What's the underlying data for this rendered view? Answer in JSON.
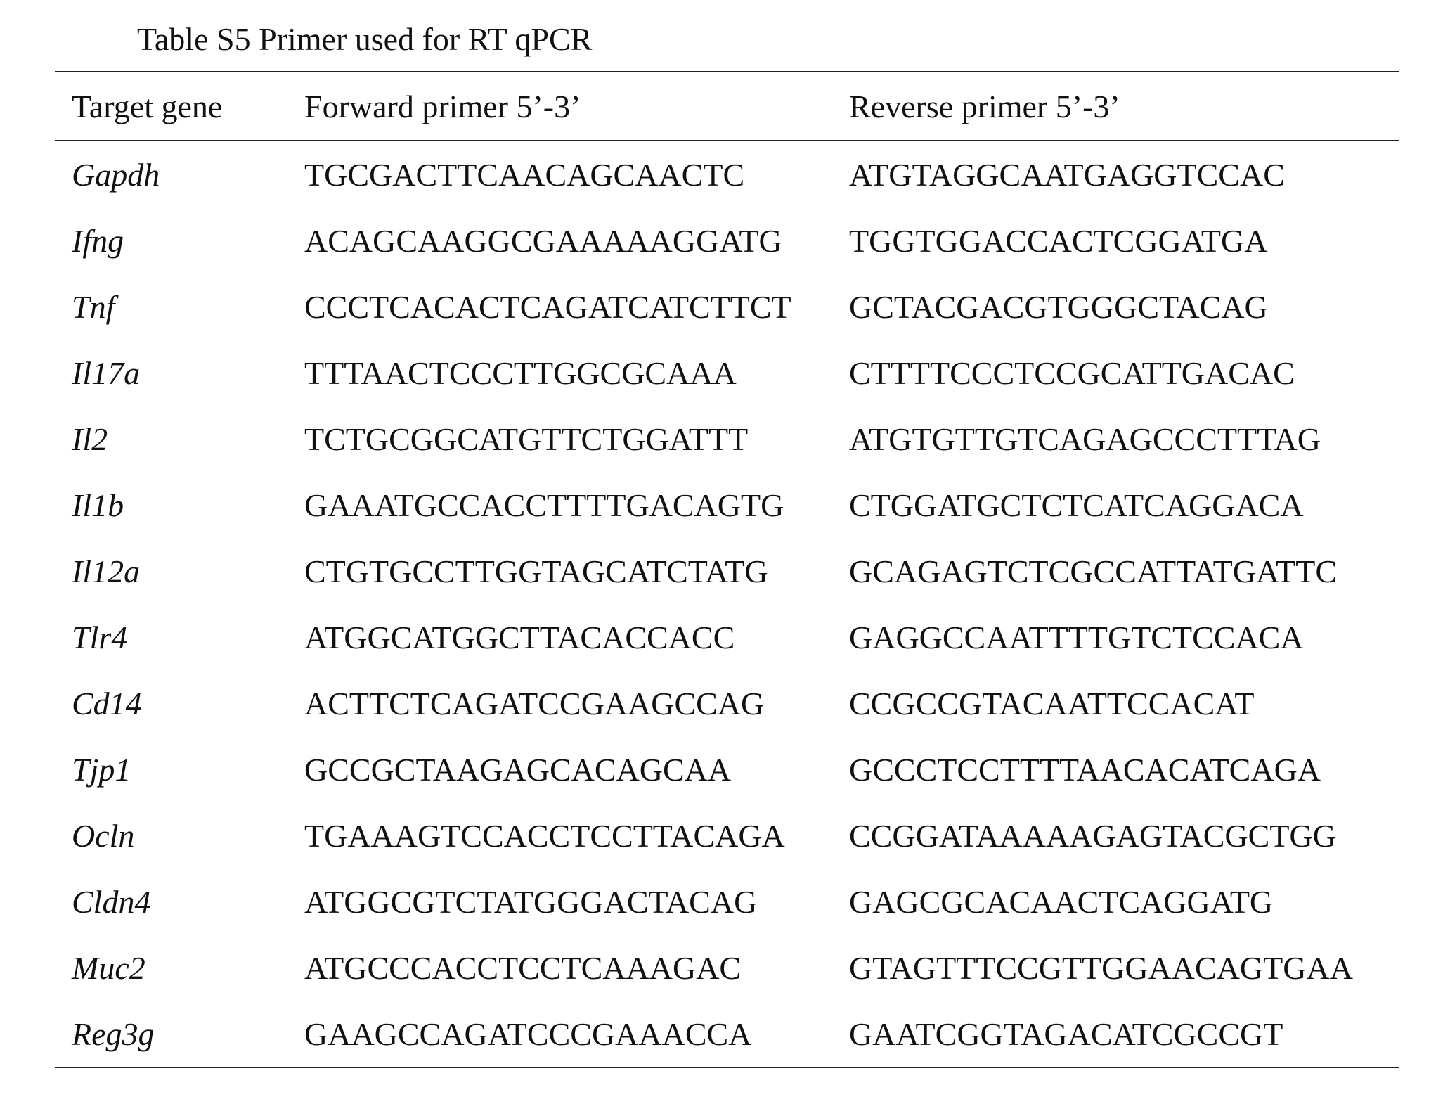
{
  "caption": "Table S5 Primer used for RT qPCR",
  "columns": [
    "Target gene",
    "Forward primer 5’-3’",
    "Reverse primer 5’-3’"
  ],
  "rows": [
    {
      "gene": "Gapdh",
      "forward": "TGCGACTTCAACAGCAACTC",
      "reverse": "ATGTAGGCAATGAGGTCCAC"
    },
    {
      "gene": "Ifng",
      "forward": "ACAGCAAGGCGAAAAAGGATG",
      "reverse": "TGGTGGACCACTCGGATGA"
    },
    {
      "gene": "Tnf",
      "forward": "CCCTCACACTCAGATCATCTTCT",
      "reverse": "GCTACGACGTGGGCTACAG"
    },
    {
      "gene": "Il17a",
      "forward": "TTTAACTCCCTTGGCGCAAA",
      "reverse": "CTTTTCCCTCCGCATTGACAC"
    },
    {
      "gene": "Il2",
      "forward": "TCTGCGGCATGTTCTGGATTT",
      "reverse": "ATGTGTTGTCAGAGCCCTTTAG"
    },
    {
      "gene": "Il1b",
      "forward": "GAAATGCCACCTTTTGACAGTG",
      "reverse": "CTGGATGCTCTCATCAGGACA"
    },
    {
      "gene": "Il12a",
      "forward": "CTGTGCCTTGGTAGCATCTATG",
      "reverse": "GCAGAGTCTCGCCATTATGATTC"
    },
    {
      "gene": "Tlr4",
      "forward": "ATGGCATGGCTTACACCACC",
      "reverse": "GAGGCCAATTTTGTCTCCACA"
    },
    {
      "gene": "Cd14",
      "forward": "ACTTCTCAGATCCGAAGCCAG",
      "reverse": "CCGCCGTACAATTCCACAT"
    },
    {
      "gene": "Tjp1",
      "forward": "GCCGCTAAGAGCACAGCAA",
      "reverse": "GCCCTCCTTTTAACACATCAGA"
    },
    {
      "gene": "Ocln",
      "forward": "TGAAAGTCCACCTCCTTACAGA",
      "reverse": "CCGGATAAAAAGAGTACGCTGG"
    },
    {
      "gene": "Cldn4",
      "forward": "ATGGCGTCTATGGGACTACAG",
      "reverse": "GAGCGCACAACTCAGGATG"
    },
    {
      "gene": "Muc2",
      "forward": "ATGCCCACCTCCTCAAAGAC",
      "reverse": "GTAGTTTCCGTTGGAACAGTGAA"
    },
    {
      "gene": "Reg3g",
      "forward": "GAAGCCAGATCCCGAAACCA",
      "reverse": "GAATCGGTAGACATCGCCGT"
    }
  ]
}
